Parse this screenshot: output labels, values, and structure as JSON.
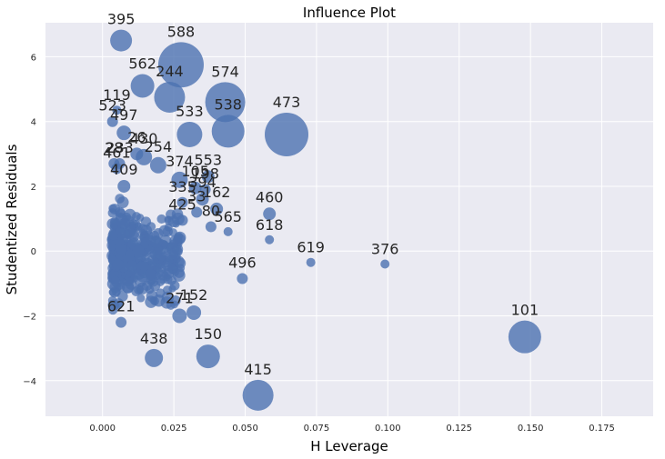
{
  "chart_data": {
    "type": "scatter",
    "title": "Influence Plot",
    "xlabel": "H Leverage",
    "ylabel": "Studentized Residuals",
    "xlim": [
      -0.02,
      0.193
    ],
    "ylim": [
      -5.1,
      7.05
    ],
    "x_ticks": [
      0.0,
      0.025,
      0.05,
      0.075,
      0.1,
      0.125,
      0.15,
      0.175
    ],
    "x_tick_labels": [
      "0.000",
      "0.025",
      "0.050",
      "0.075",
      "0.100",
      "0.125",
      "0.150",
      "0.175"
    ],
    "y_ticks": [
      -4,
      -2,
      0,
      2,
      4,
      6
    ],
    "y_tick_labels": [
      "−4",
      "−2",
      "0",
      "2",
      "4",
      "6"
    ],
    "grid": true,
    "background": "#eaeaf2",
    "point_color": "#4c72b0",
    "labeled_points": [
      {
        "label": "395",
        "x": 0.0065,
        "y": 6.5,
        "size": 12
      },
      {
        "label": "588",
        "x": 0.0275,
        "y": 5.75,
        "size": 25
      },
      {
        "label": "562",
        "x": 0.014,
        "y": 5.1,
        "size": 13
      },
      {
        "label": "244",
        "x": 0.0235,
        "y": 4.75,
        "size": 17
      },
      {
        "label": "574",
        "x": 0.043,
        "y": 4.6,
        "size": 22
      },
      {
        "label": "119",
        "x": 0.005,
        "y": 4.35,
        "size": 5
      },
      {
        "label": "523",
        "x": 0.0035,
        "y": 4.0,
        "size": 6
      },
      {
        "label": "497",
        "x": 0.0075,
        "y": 3.65,
        "size": 8
      },
      {
        "label": "533",
        "x": 0.0305,
        "y": 3.6,
        "size": 14
      },
      {
        "label": "538",
        "x": 0.044,
        "y": 3.7,
        "size": 18
      },
      {
        "label": "473",
        "x": 0.0645,
        "y": 3.6,
        "size": 24
      },
      {
        "label": "26",
        "x": 0.012,
        "y": 3.0,
        "size": 7
      },
      {
        "label": "430",
        "x": 0.0145,
        "y": 2.9,
        "size": 9
      },
      {
        "label": "254",
        "x": 0.0195,
        "y": 2.65,
        "size": 9
      },
      {
        "label": "28",
        "x": 0.004,
        "y": 2.7,
        "size": 6
      },
      {
        "label": "233",
        "x": 0.006,
        "y": 2.7,
        "size": 6
      },
      {
        "label": "461",
        "x": 0.005,
        "y": 2.55,
        "size": 6
      },
      {
        "label": "409",
        "x": 0.0075,
        "y": 2.0,
        "size": 7
      },
      {
        "label": "374",
        "x": 0.027,
        "y": 2.2,
        "size": 9
      },
      {
        "label": "105",
        "x": 0.0325,
        "y": 1.95,
        "size": 7
      },
      {
        "label": "553",
        "x": 0.037,
        "y": 2.3,
        "size": 7
      },
      {
        "label": "198",
        "x": 0.036,
        "y": 1.9,
        "size": 6
      },
      {
        "label": "394",
        "x": 0.035,
        "y": 1.6,
        "size": 7
      },
      {
        "label": "335",
        "x": 0.028,
        "y": 1.5,
        "size": 6
      },
      {
        "label": "33",
        "x": 0.033,
        "y": 1.2,
        "size": 6
      },
      {
        "label": "162",
        "x": 0.04,
        "y": 1.3,
        "size": 7
      },
      {
        "label": "460",
        "x": 0.0585,
        "y": 1.15,
        "size": 7
      },
      {
        "label": "425",
        "x": 0.028,
        "y": 0.95,
        "size": 6
      },
      {
        "label": "80",
        "x": 0.038,
        "y": 0.75,
        "size": 6
      },
      {
        "label": "618",
        "x": 0.0585,
        "y": 0.35,
        "size": 5
      },
      {
        "label": "565",
        "x": 0.044,
        "y": 0.6,
        "size": 5
      },
      {
        "label": "619",
        "x": 0.073,
        "y": -0.35,
        "size": 5
      },
      {
        "label": "376",
        "x": 0.099,
        "y": -0.4,
        "size": 5
      },
      {
        "label": "496",
        "x": 0.049,
        "y": -0.85,
        "size": 6
      },
      {
        "label": "101",
        "x": 0.148,
        "y": -2.65,
        "size": 18
      },
      {
        "label": "621",
        "x": 0.0065,
        "y": -2.2,
        "size": 6
      },
      {
        "label": "271",
        "x": 0.027,
        "y": -2.0,
        "size": 8
      },
      {
        "label": "152",
        "x": 0.032,
        "y": -1.9,
        "size": 8
      },
      {
        "label": "438",
        "x": 0.018,
        "y": -3.3,
        "size": 10
      },
      {
        "label": "150",
        "x": 0.037,
        "y": -3.25,
        "size": 13
      },
      {
        "label": "415",
        "x": 0.0545,
        "y": -4.45,
        "size": 17
      }
    ]
  }
}
